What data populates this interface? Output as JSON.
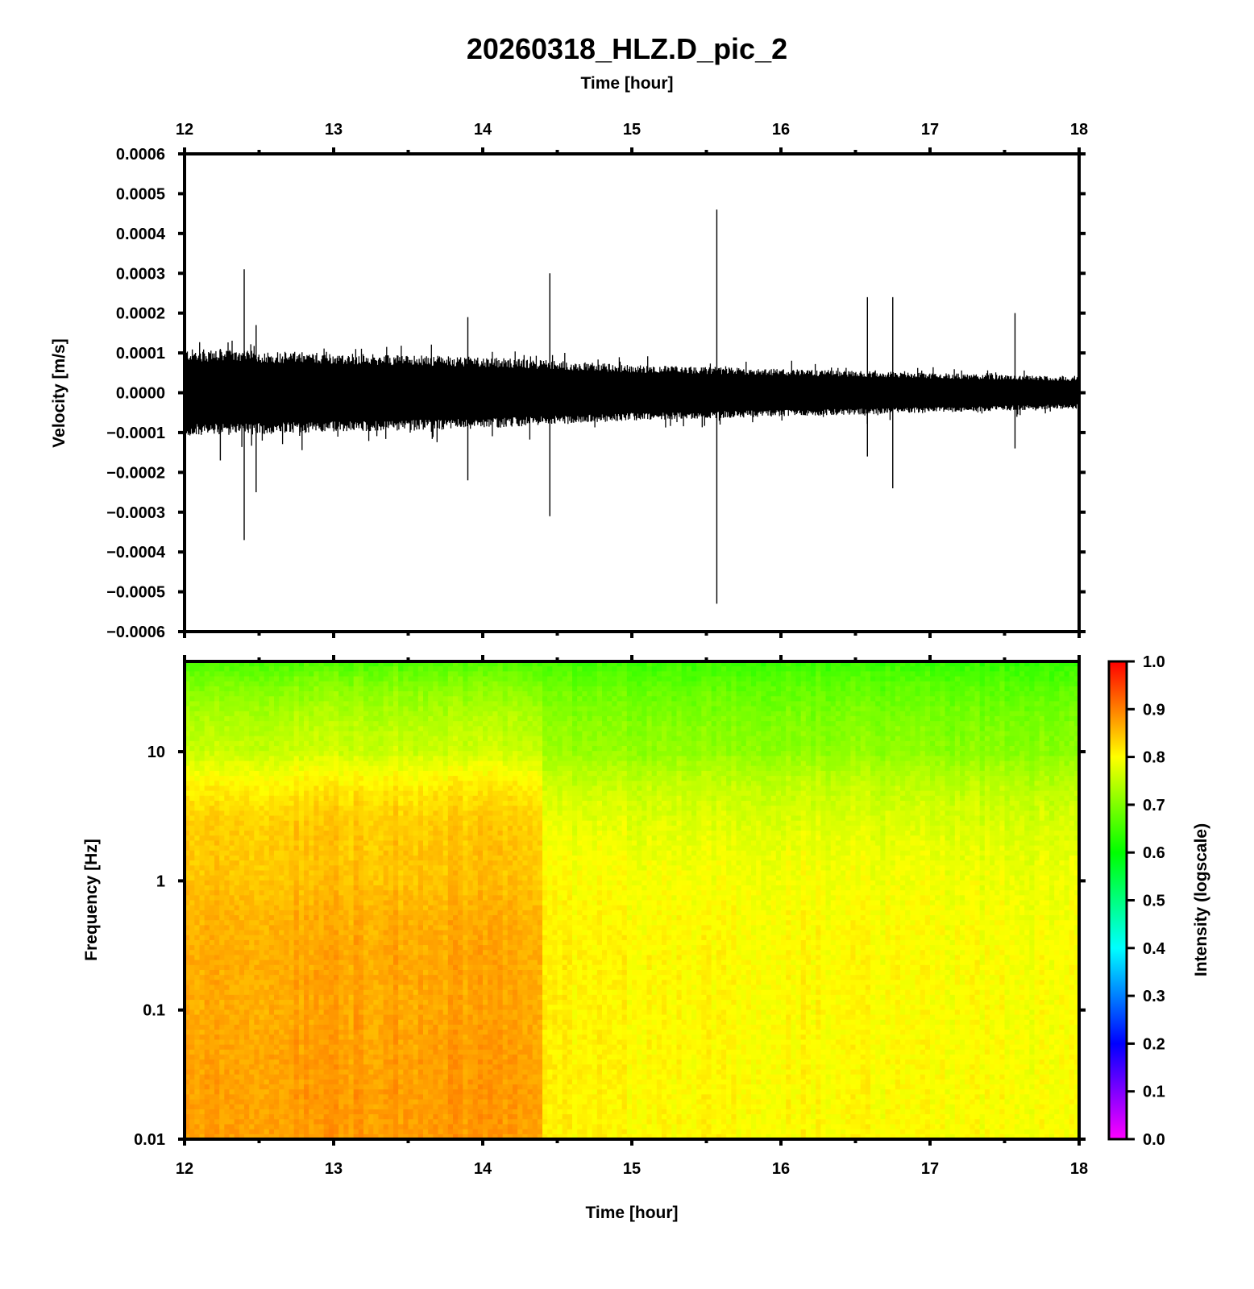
{
  "title": "20260318_HLZ.D_pic_2",
  "chart_data": [
    {
      "type": "line",
      "xlabel": "Time [hour]",
      "ylabel": "Velocity [m/s]",
      "xlim": [
        12,
        18
      ],
      "ylim": [
        -0.0006,
        0.0006
      ],
      "x_ticks": [
        "12",
        "13",
        "14",
        "15",
        "16",
        "17",
        "18"
      ],
      "y_ticks": [
        "0.0006",
        "0.0005",
        "0.0004",
        "0.0003",
        "0.0002",
        "0.0001",
        "0.0000",
        "−0.0001",
        "−0.0002",
        "−0.0003",
        "−0.0004",
        "−0.0005",
        "−0.0006"
      ],
      "noise_envelope": {
        "x": [
          12.0,
          13.0,
          14.0,
          14.5,
          15.0,
          16.0,
          17.0,
          18.0
        ],
        "amplitude": [
          0.00011,
          0.0001,
          9e-05,
          8e-05,
          7e-05,
          6e-05,
          5e-05,
          4e-05
        ]
      },
      "spikes": [
        {
          "x": 12.4,
          "max": 0.00031,
          "min": -0.00037
        },
        {
          "x": 12.48,
          "max": 0.00017,
          "min": -0.00025
        },
        {
          "x": 12.24,
          "max": 0.00011,
          "min": -0.00017
        },
        {
          "x": 13.9,
          "max": 0.00019,
          "min": -0.00022
        },
        {
          "x": 14.45,
          "max": 0.0003,
          "min": -0.00031
        },
        {
          "x": 15.57,
          "max": 0.00046,
          "min": -0.00053
        },
        {
          "x": 16.58,
          "max": 0.00024,
          "min": -0.00016
        },
        {
          "x": 16.75,
          "max": 0.00024,
          "min": -0.00024
        },
        {
          "x": 17.57,
          "max": 0.0002,
          "min": -0.00014
        }
      ]
    },
    {
      "type": "heatmap",
      "xlabel": "Time [hour]",
      "ylabel": "Frequency [Hz]",
      "xlim": [
        12,
        18
      ],
      "ylim": [
        0.01,
        50
      ],
      "y_scale": "log",
      "x_ticks": [
        "12",
        "13",
        "14",
        "15",
        "16",
        "17",
        "18"
      ],
      "y_ticks": [
        "10",
        "1",
        "0.1",
        "0.01"
      ],
      "colorbar": {
        "label": "Intensity (logscale)",
        "range": [
          0,
          1
        ],
        "ticks": [
          "1.0",
          "0.9",
          "0.8",
          "0.7",
          "0.6",
          "0.5",
          "0.4",
          "0.3",
          "0.2",
          "0.1",
          "0.0"
        ],
        "colors": [
          "#ff00ff",
          "#0000ff",
          "#00ffff",
          "#00ff00",
          "#ffff00",
          "#ff0000"
        ]
      },
      "intensity_profile": {
        "freq_hz": [
          0.01,
          0.1,
          0.25,
          1,
          3,
          10,
          50
        ],
        "before_14_4h": [
          0.88,
          0.87,
          0.87,
          0.85,
          0.84,
          0.76,
          0.66
        ],
        "after_14_4h": [
          0.81,
          0.81,
          0.81,
          0.8,
          0.78,
          0.72,
          0.65
        ]
      }
    }
  ]
}
